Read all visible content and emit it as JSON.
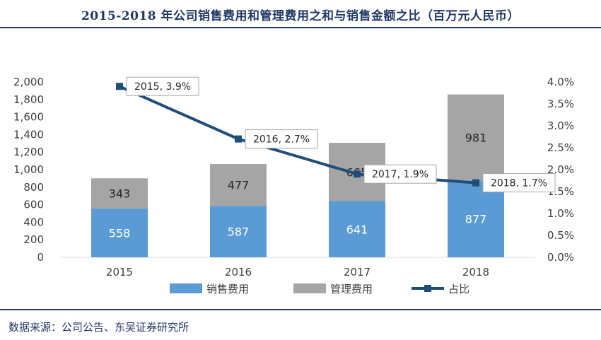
{
  "title": "2015-2018 年公司销售费用和管理费用之和与销售金额之比（百万元人民币）",
  "source": "数据来源：公司公告、东吴证券研究所",
  "chart_data": {
    "type": "bar",
    "stacked": true,
    "categories": [
      "2015",
      "2016",
      "2017",
      "2018"
    ],
    "series": [
      {
        "name": "销售费用",
        "type": "bar",
        "axis": "left",
        "values": [
          558,
          587,
          641,
          877
        ],
        "color": "#5b9bd5"
      },
      {
        "name": "管理费用",
        "type": "bar",
        "axis": "left",
        "values": [
          343,
          477,
          665,
          981
        ],
        "color": "#a5a5a5"
      },
      {
        "name": "占比",
        "type": "line",
        "axis": "right",
        "values": [
          3.9,
          2.7,
          1.9,
          1.7
        ],
        "color": "#1f4e79"
      }
    ],
    "y_left": {
      "min": 0,
      "max": 2000,
      "step": 200,
      "tick_labels": [
        "0",
        "200",
        "400",
        "600",
        "800",
        "1,000",
        "1,200",
        "1,400",
        "1,600",
        "1,800",
        "2,000"
      ]
    },
    "y_right": {
      "min": 0,
      "max": 4.0,
      "step": 0.5,
      "tick_labels": [
        "0.0%",
        "0.5%",
        "1.0%",
        "1.5%",
        "2.0%",
        "2.5%",
        "3.0%",
        "3.5%",
        "4.0%"
      ]
    },
    "line_labels": [
      "2015, 3.9%",
      "2016, 2.7%",
      "2017, 1.9%",
      "2018, 1.7%"
    ],
    "legend_position": "bottom",
    "grid": false
  }
}
